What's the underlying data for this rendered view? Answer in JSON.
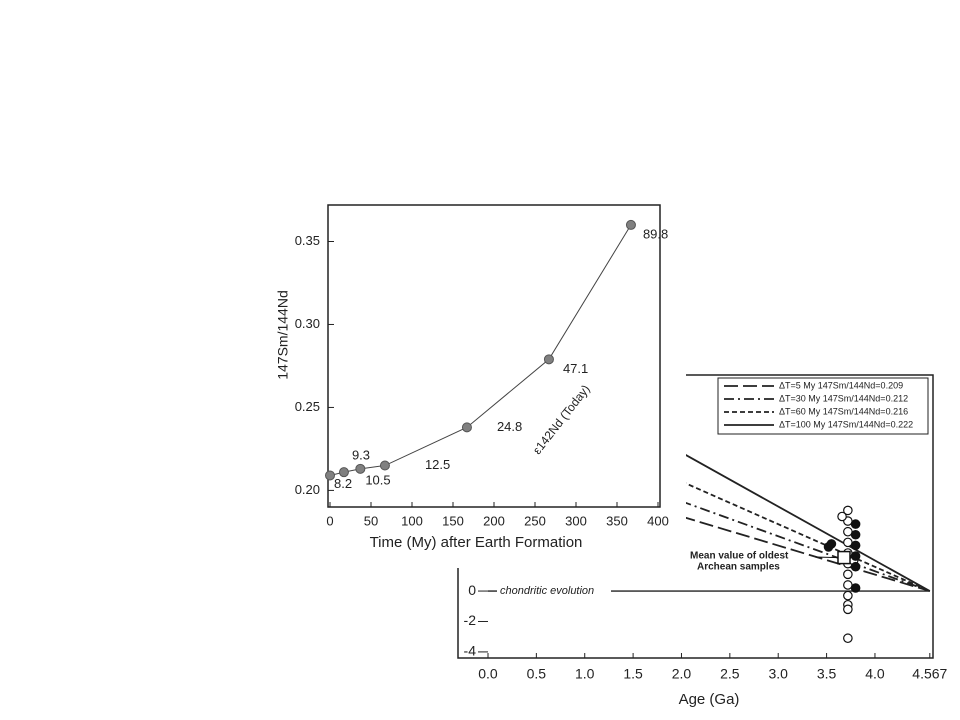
{
  "chart_data": [
    {
      "type": "scatter",
      "x_label": "Time (My) after Earth Formation",
      "y_label": "147Sm/144Nd",
      "annotation": "ε142Nd (Today)",
      "x": [
        0,
        17,
        37,
        67,
        167,
        267,
        367
      ],
      "values": [
        0.209,
        0.211,
        0.213,
        0.215,
        0.238,
        0.279,
        0.36
      ],
      "eps_values": [
        8.2,
        9.3,
        10.5,
        12.5,
        24.8,
        47.1,
        89.8
      ],
      "color": "#808080",
      "xlim": [
        0,
        400
      ],
      "xticks": [
        0,
        50,
        100,
        150,
        200,
        250,
        300,
        350,
        400
      ],
      "ylim": [
        0.19,
        0.372
      ],
      "yticks": [
        {
          "value": 0.2,
          "label": "0.20"
        },
        0.25,
        {
          "value": 0.3,
          "label": "0.30"
        },
        0.35
      ]
    },
    {
      "type": "line",
      "x_label": "Age (Ga)",
      "xlim": [
        -0.31,
        4.6
      ],
      "xticks": [
        {
          "value": 0,
          "label": "0.0"
        },
        0.5,
        {
          "value": 1,
          "label": "1.0"
        },
        1.5,
        {
          "value": 2,
          "label": "2.0"
        },
        2.5,
        {
          "value": 3,
          "label": "3.0"
        },
        3.5,
        {
          "value": 4,
          "label": "4.0"
        },
        4.567
      ],
      "ylim": [
        -4.4,
        14.2
      ],
      "yticks": [
        -4,
        -2,
        0
      ],
      "series": [
        {
          "name": "ΔT=5 My 147Sm/144Nd=0.209",
          "dash": "long",
          "color": "#222222",
          "x": [
            2.0,
            4.567
          ],
          "values": [
            4.9,
            0
          ]
        },
        {
          "name": "ΔT=30 My 147Sm/144Nd=0.212",
          "dash": "dash-dot",
          "color": "#222222",
          "x": [
            2.0,
            4.567
          ],
          "values": [
            5.9,
            0
          ]
        },
        {
          "name": "ΔT=60 My 147Sm/144Nd=0.216",
          "dash": "short",
          "color": "#222222",
          "x": [
            2.0,
            4.567
          ],
          "values": [
            7.2,
            0
          ]
        },
        {
          "name": "ΔT=100 My 147Sm/144Nd=0.222",
          "dash": "solid",
          "color": "#222222",
          "x": [
            2.0,
            4.567
          ],
          "values": [
            9.1,
            0
          ]
        }
      ],
      "reference": {
        "label": "chondritic evolution",
        "value": 0
      },
      "samples_open": {
        "x": [
          3.72,
          3.72,
          3.72,
          3.72,
          3.72,
          3.72,
          3.72,
          3.72,
          3.72,
          3.72,
          3.72,
          3.72,
          3.66,
          3.78
        ],
        "values": [
          5.3,
          4.6,
          3.9,
          3.2,
          2.5,
          1.8,
          1.1,
          0.4,
          -0.3,
          -0.9,
          -1.2,
          -3.1,
          4.9,
          2.0
        ]
      },
      "samples_filled": {
        "x": [
          3.8,
          3.8,
          3.8,
          3.8,
          3.8,
          3.8,
          3.52,
          3.55
        ],
        "values": [
          4.4,
          3.7,
          3.0,
          2.3,
          1.6,
          0.2,
          2.9,
          3.1
        ]
      },
      "mean": {
        "label": [
          "Mean value of oldest",
          "Archean samples"
        ],
        "x": 3.68,
        "value": 2.2
      }
    }
  ]
}
